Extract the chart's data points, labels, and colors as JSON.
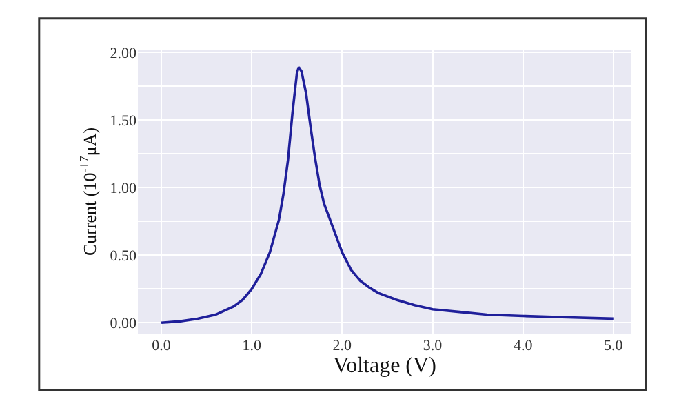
{
  "chart_data": {
    "type": "line",
    "xlabel": "Voltage (V)",
    "ylabel": "Current (10$^{-17}$μA)",
    "x": [
      0,
      0.2,
      0.4,
      0.6,
      0.8,
      0.9,
      1.0,
      1.1,
      1.2,
      1.3,
      1.35,
      1.4,
      1.45,
      1.5,
      1.52,
      1.55,
      1.6,
      1.65,
      1.7,
      1.75,
      1.8,
      1.9,
      2.0,
      2.1,
      2.2,
      2.3,
      2.4,
      2.6,
      2.8,
      3.0,
      3.3,
      3.6,
      4.0,
      4.5,
      5.0
    ],
    "series": [
      {
        "color": "#1f1f9a",
        "values": [
          0.0,
          0.01,
          0.03,
          0.06,
          0.12,
          0.17,
          0.25,
          0.36,
          0.52,
          0.76,
          0.95,
          1.2,
          1.55,
          1.85,
          1.89,
          1.86,
          1.7,
          1.45,
          1.22,
          1.02,
          0.88,
          0.7,
          0.52,
          0.39,
          0.31,
          0.26,
          0.22,
          0.17,
          0.13,
          0.1,
          0.08,
          0.06,
          0.05,
          0.04,
          0.03
        ]
      }
    ],
    "xlim": [
      -0.26,
      5.2
    ],
    "xticks": [
      {
        "value": 0,
        "label": "0.0"
      },
      {
        "value": 1,
        "label": "1.0"
      },
      {
        "value": 2,
        "label": "2.0"
      },
      {
        "value": 3,
        "label": "3.0"
      },
      {
        "value": 4,
        "label": "4.0"
      },
      {
        "value": 5,
        "label": "5.0"
      }
    ],
    "ylim": [
      -0.08,
      2.02
    ],
    "yticks": [
      {
        "value": 0,
        "label": "0.00"
      },
      {
        "value": 0.25,
        "label": null
      },
      {
        "value": 0.5,
        "label": "0.50"
      },
      {
        "value": 0.75,
        "label": null
      },
      {
        "value": 1,
        "label": "1.00"
      },
      {
        "value": 1.25,
        "label": null
      },
      {
        "value": 1.5,
        "label": "1.50"
      },
      {
        "value": 1.75,
        "label": null
      },
      {
        "value": 2,
        "label": "2.00"
      }
    ],
    "grid": true,
    "marker": "none",
    "line_style": "solid"
  }
}
